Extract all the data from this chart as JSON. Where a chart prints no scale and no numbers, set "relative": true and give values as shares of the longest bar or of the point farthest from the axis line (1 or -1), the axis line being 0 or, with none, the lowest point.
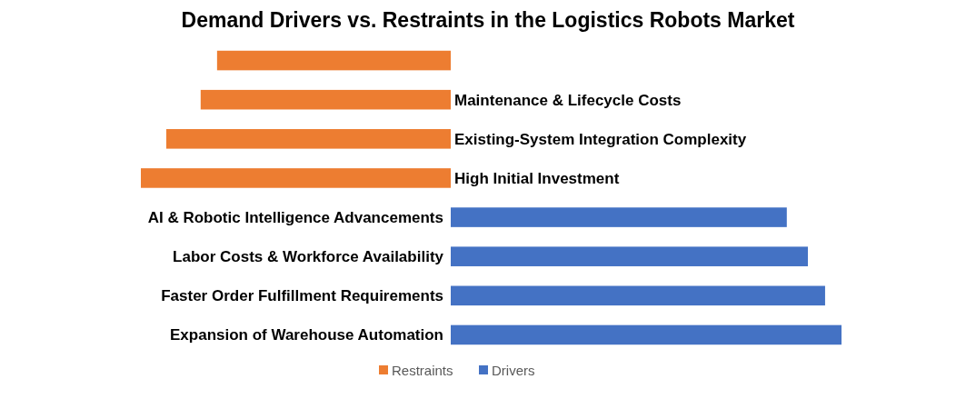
{
  "chart_data": {
    "type": "bar",
    "orientation": "horizontal",
    "relative": true,
    "title": "Demand Drivers vs. Restraints in the Logistics Robots Market",
    "categories": [
      null,
      "Maintenance & Lifecycle Costs",
      "Existing-System Integration Complexity",
      "High Initial Investment",
      "AI & Robotic Intelligence Advancements",
      "Labor Costs & Workforce Availability",
      "Faster Order Fulfillment Requirements",
      "Expansion of Warehouse Automation"
    ],
    "series": [
      {
        "name": "Restraints",
        "color": "#ed7d31",
        "values": [
          -0.598,
          -0.64,
          -0.728,
          -0.793,
          null,
          null,
          null,
          null
        ]
      },
      {
        "name": "Drivers",
        "color": "#4472c4",
        "values": [
          null,
          null,
          null,
          null,
          0.86,
          0.914,
          0.958,
          1
        ]
      }
    ],
    "legend": "bottom"
  }
}
